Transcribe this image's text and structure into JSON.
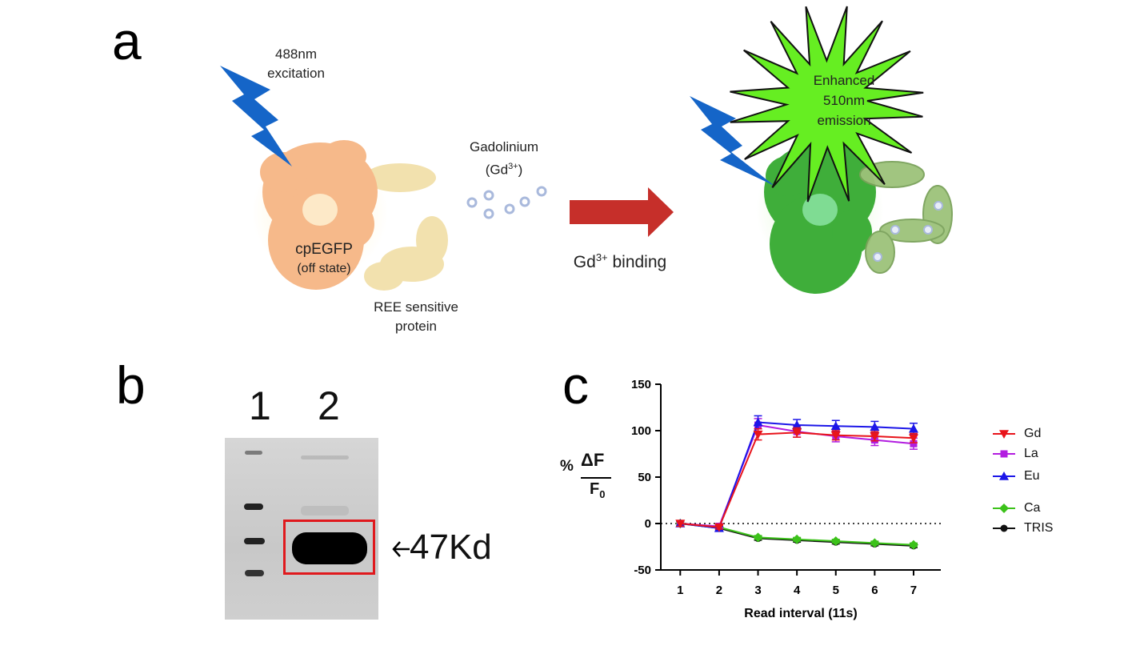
{
  "panel_a": {
    "letter": "a",
    "excitation_line1": "488nm",
    "excitation_line2": "excitation",
    "gd_line1": "Gadolinium",
    "gd_line2_prefix": "(Gd",
    "gd_line2_sup": "3+",
    "gd_line2_suffix": ")",
    "protein_name": "cpEGFP",
    "protein_state": "(off state)",
    "ree_line1": "REE sensitive",
    "ree_line2": "protein",
    "binding_prefix": "Gd",
    "binding_sup": "3+",
    "binding_suffix": " binding",
    "emission_line1": "Enhanced",
    "emission_line2": "510nm",
    "emission_line3": "emission",
    "colors": {
      "bolt": "#1565c8",
      "off_protein": "#f6b98a",
      "ree_protein": "#f0dca0",
      "on_protein": "#3fae3a",
      "arrow": "#c62f2a",
      "starburst": "#66ee22",
      "ion": "#a9b9dc"
    }
  },
  "panel_b": {
    "letter": "b",
    "lane1": "1",
    "lane2": "2",
    "band_label": "47Kd",
    "box_color": "#e0191d"
  },
  "panel_c": {
    "letter": "c",
    "ylabel_percent": "%",
    "ylabel_num": "ΔF",
    "ylabel_den": "F",
    "ylabel_den_sub": "0",
    "chart_data": {
      "type": "line",
      "xlabel": "Read interval (11s)",
      "x": [
        1,
        2,
        3,
        4,
        5,
        6,
        7
      ],
      "ylim": [
        -50,
        150
      ],
      "yticks": [
        -50,
        0,
        50,
        100,
        150
      ],
      "zero_line": "dotted",
      "grid": false,
      "legend_position": "right",
      "series": [
        {
          "name": "Gd",
          "color": "#e8141b",
          "marker": "triangle-down",
          "values": [
            0,
            -4,
            96,
            98,
            95,
            94,
            92
          ],
          "err": [
            3,
            2,
            6,
            5,
            5,
            5,
            5
          ]
        },
        {
          "name": "La",
          "color": "#b21de0",
          "marker": "square",
          "values": [
            0,
            -3,
            106,
            99,
            94,
            90,
            86
          ],
          "err": [
            3,
            2,
            7,
            6,
            6,
            6,
            6
          ]
        },
        {
          "name": "Eu",
          "color": "#1c16e8",
          "marker": "triangle-up",
          "values": [
            0,
            -5,
            109,
            106,
            105,
            104,
            102
          ],
          "err": [
            3,
            2,
            7,
            6,
            6,
            6,
            6
          ]
        },
        {
          "name": "Ca",
          "color": "#3cc21a",
          "marker": "diamond",
          "values": [
            0,
            -4,
            -15,
            -17,
            -19,
            -21,
            -23
          ],
          "err": [
            2,
            2,
            2,
            2,
            2,
            2,
            2
          ]
        },
        {
          "name": "TRIS",
          "color": "#111111",
          "marker": "circle",
          "values": [
            0,
            -5,
            -16,
            -18,
            -20,
            -22,
            -24
          ],
          "err": [
            2,
            2,
            2,
            2,
            2,
            2,
            2
          ]
        }
      ]
    }
  }
}
